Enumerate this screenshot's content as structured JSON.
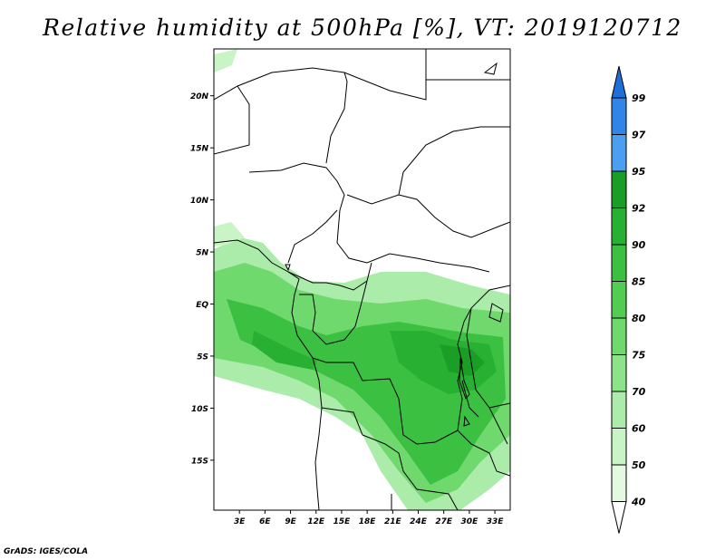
{
  "title": "Relative humidity at 500hPa [%], VT: 2019120712",
  "credit": "GrADS: IGES/COLA",
  "map": {
    "lat_ticks": [
      {
        "label": "20N",
        "lat": 20
      },
      {
        "label": "15N",
        "lat": 15
      },
      {
        "label": "10N",
        "lat": 10
      },
      {
        "label": "5N",
        "lat": 5
      },
      {
        "label": "EQ",
        "lat": 0
      },
      {
        "label": "5S",
        "lat": -5
      },
      {
        "label": "10S",
        "lat": -10
      },
      {
        "label": "15S",
        "lat": -15
      }
    ],
    "lon_ticks": [
      {
        "label": "3E",
        "lon": 3
      },
      {
        "label": "6E",
        "lon": 6
      },
      {
        "label": "9E",
        "lon": 9
      },
      {
        "label": "12E",
        "lon": 12
      },
      {
        "label": "15E",
        "lon": 15
      },
      {
        "label": "18E",
        "lon": 18
      },
      {
        "label": "21E",
        "lon": 21
      },
      {
        "label": "24E",
        "lon": 24
      },
      {
        "label": "27E",
        "lon": 27
      },
      {
        "label": "30E",
        "lon": 30
      },
      {
        "label": "33E",
        "lon": 33
      }
    ],
    "lon_range": [
      0,
      34.8
    ],
    "lat_range": [
      -19.8,
      24.5
    ]
  },
  "colorbar": {
    "levels": [
      "99",
      "97",
      "95",
      "92",
      "90",
      "85",
      "80",
      "75",
      "70",
      "60",
      "50",
      "40"
    ],
    "colors": [
      "#1f6fd8",
      "#2f86e8",
      "#4b9ef0",
      "#1a9e26",
      "#28b033",
      "#3cc042",
      "#52cd52",
      "#6fd96d",
      "#8de38a",
      "#abecaa",
      "#c8f4c6",
      "#e3fae1",
      "#ffffff"
    ]
  }
}
